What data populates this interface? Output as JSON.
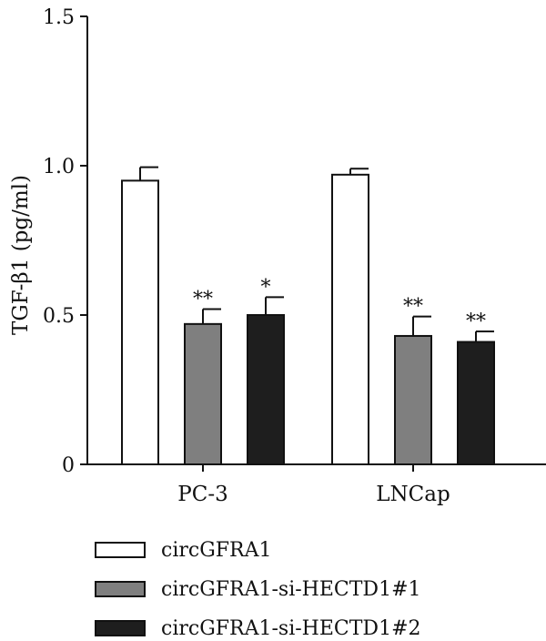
{
  "chart_data": {
    "type": "bar",
    "ylabel": "TGF-β1 (pg/ml)",
    "ylim": [
      0,
      1.5
    ],
    "yticks": [
      {
        "value": 0,
        "label": "0"
      },
      {
        "value": 0.5,
        "label": "0.5"
      },
      {
        "value": 1.0,
        "label": "1.0"
      },
      {
        "value": 1.5,
        "label": "1.5"
      }
    ],
    "categories": [
      "PC-3",
      "LNCap"
    ],
    "series": [
      {
        "name": "circGFRA1",
        "color": "#ffffff",
        "values": [
          0.95,
          0.97
        ],
        "errors": [
          0.045,
          0.02
        ],
        "significance": [
          "",
          ""
        ]
      },
      {
        "name": "circGFRA1-si-HECTD1#1",
        "color": "#7f7f7f",
        "values": [
          0.47,
          0.43
        ],
        "errors": [
          0.05,
          0.065
        ],
        "significance": [
          "**",
          "**"
        ]
      },
      {
        "name": "circGFRA1-si-HECTD1#2",
        "color": "#1e1e1e",
        "values": [
          0.5,
          0.41
        ],
        "errors": [
          0.06,
          0.035
        ],
        "significance": [
          "*",
          "**"
        ]
      }
    ],
    "legend_position": "bottom-left",
    "grid": false
  }
}
